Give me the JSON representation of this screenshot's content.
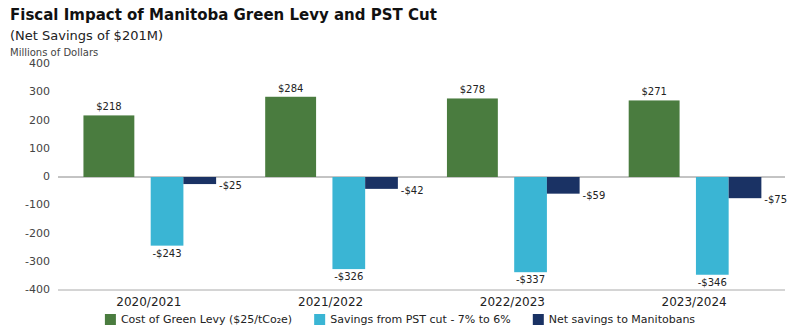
{
  "chart_data": {
    "type": "bar",
    "title": "Fiscal Impact of Manitoba Green Levy and PST Cut",
    "subtitle": "(Net Savings of $201M)",
    "ylabel": "Millions of Dollars",
    "categories": [
      "2020/2021",
      "2021/2022",
      "2022/2023",
      "2023/2024"
    ],
    "series": [
      {
        "name": "Cost of Green Levy ($25/tCo₂e)",
        "color": "#4a7c3f",
        "values": [
          218,
          284,
          278,
          271
        ],
        "value_labels": [
          "$218",
          "$284",
          "$278",
          "$271"
        ]
      },
      {
        "name": "Savings from PST cut - 7% to 6%",
        "color": "#3ab5d4",
        "values": [
          -243,
          -326,
          -337,
          -346
        ],
        "value_labels": [
          "-$243",
          "-$326",
          "-$337",
          "-$346"
        ]
      },
      {
        "name": "Net savings to Manitobans",
        "color": "#1a3264",
        "values": [
          -25,
          -42,
          -59,
          -75
        ],
        "value_labels": [
          "-$25",
          "-$42",
          "-$59",
          "-$75"
        ]
      }
    ],
    "ylim": [
      -400,
      400
    ],
    "yticks": [
      -400,
      -300,
      -200,
      -100,
      0,
      100,
      200,
      300,
      400
    ],
    "grid": false,
    "legend": "bottom",
    "data_labels": true
  }
}
